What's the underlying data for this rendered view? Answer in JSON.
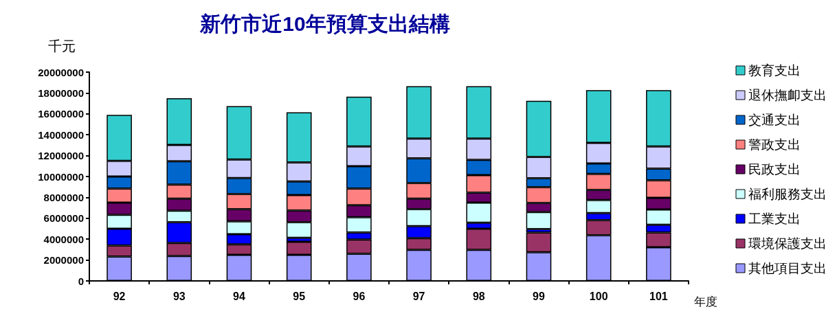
{
  "chart_data": {
    "type": "bar",
    "title": "新竹市近10年預算支出結構",
    "ylabel": "千元",
    "xlabel": "年度",
    "stacked": true,
    "legend": "right",
    "grid": false,
    "categories": [
      "92",
      "93",
      "94",
      "95",
      "96",
      "97",
      "98",
      "99",
      "100",
      "101"
    ],
    "ylim": [
      0,
      20000000
    ],
    "yticks": [
      0,
      2000000,
      4000000,
      6000000,
      8000000,
      10000000,
      12000000,
      14000000,
      16000000,
      18000000,
      20000000
    ],
    "series": [
      {
        "name": "其他項目支出",
        "color": "#9999ff",
        "values": [
          2330000,
          2380000,
          2500000,
          2500000,
          2600000,
          2980000,
          2980000,
          2750000,
          4380000,
          3230000
        ]
      },
      {
        "name": "環境保護支出",
        "color": "#993366",
        "values": [
          1050000,
          1250000,
          1000000,
          1250000,
          1360000,
          1120000,
          2020000,
          1880000,
          1450000,
          1400000
        ]
      },
      {
        "name": "工業支出",
        "color": "#0000ff",
        "values": [
          1620000,
          2000000,
          980000,
          380000,
          670000,
          1150000,
          580000,
          330000,
          670000,
          750000
        ]
      },
      {
        "name": "福利服務支出",
        "color": "#ccffff",
        "values": [
          1330000,
          1100000,
          1230000,
          1500000,
          1470000,
          1630000,
          1920000,
          1640000,
          1250000,
          1470000
        ]
      },
      {
        "name": "民政支出",
        "color": "#660066",
        "values": [
          1170000,
          1150000,
          1170000,
          1120000,
          1150000,
          1000000,
          960000,
          860000,
          960000,
          1110000
        ]
      },
      {
        "name": "警政支出",
        "color": "#ff8080",
        "values": [
          1350000,
          1350000,
          1450000,
          1480000,
          1600000,
          1500000,
          1670000,
          1520000,
          1540000,
          1670000
        ]
      },
      {
        "name": "交通支出",
        "color": "#0066cc",
        "values": [
          1150000,
          2230000,
          1520000,
          1290000,
          2130000,
          2370000,
          1470000,
          850000,
          1000000,
          1120000
        ]
      },
      {
        "name": "退休撫卹支出",
        "color": "#ccccff",
        "values": [
          1500000,
          1560000,
          1780000,
          1830000,
          1900000,
          1880000,
          2030000,
          2050000,
          1980000,
          2130000
        ]
      },
      {
        "name": "教育支出",
        "color": "#33cccc",
        "values": [
          4400000,
          4480000,
          5120000,
          4800000,
          4770000,
          5020000,
          5020000,
          5370000,
          5040000,
          5390000
        ]
      }
    ]
  }
}
